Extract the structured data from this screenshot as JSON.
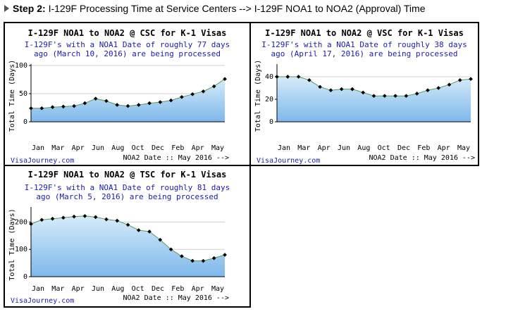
{
  "header": {
    "step_label": "Step 2:",
    "step_text": " I-129F Processing Time at Service Centers --> I-129F NOA1 to NOA2 (Approval) Time"
  },
  "colors": {
    "fill_top": "#d6ebfa",
    "fill_bottom": "#7db8ea",
    "line": "#000000",
    "subtitle": "#1a1ab3"
  },
  "chart_data": [
    {
      "type": "area",
      "title": "I-129F NOA1 to NOA2 @ CSC for K-1 Visas",
      "subtitle_lines": [
        "I-129F's with a NOA1 Date of roughly 77 days",
        "ago (March 10, 2016) are being processed"
      ],
      "ylabel": "Total Time (Days)",
      "xlabel": "NOA2 Date :: May 2016 -->",
      "source": "VisaJourney.com",
      "x_tick_labels": [
        "Jan",
        "Mar",
        "Apr",
        "Jun",
        "Aug",
        "Oct",
        "Dec",
        "Feb",
        "Apr",
        "May"
      ],
      "y_ticks": [
        0,
        50,
        100
      ],
      "ylim": [
        0,
        100
      ],
      "values": [
        24,
        24,
        26,
        27,
        28,
        33,
        41,
        37,
        30,
        28,
        30,
        33,
        35,
        38,
        44,
        49,
        54,
        63,
        76
      ]
    },
    {
      "type": "area",
      "title": "I-129F NOA1 to NOA2 @ VSC for K-1 Visas",
      "subtitle_lines": [
        "I-129F's with a NOA1 Date of roughly 38 days",
        "ago (April 17, 2016) are being processed"
      ],
      "ylabel": "Total Time (Days)",
      "xlabel": "NOA2 Date :: May 2016 -->",
      "source": "VisaJourney.com",
      "x_tick_labels": [
        "Jan",
        "Mar",
        "Apr",
        "Jun",
        "Aug",
        "Oct",
        "Dec",
        "Feb",
        "Apr",
        "May"
      ],
      "y_ticks": [
        0,
        20,
        40
      ],
      "ylim": [
        0,
        50
      ],
      "values": [
        40,
        40,
        40,
        37,
        31,
        28,
        29,
        29,
        26,
        23,
        23,
        23,
        23,
        25,
        28,
        30,
        33,
        37,
        38
      ]
    },
    {
      "type": "area",
      "title": "I-129F NOA1 to NOA2 @ TSC for K-1 Visas",
      "subtitle_lines": [
        "I-129F's with a NOA1 Date of roughly 81 days",
        "ago (March 5, 2016) are being processed"
      ],
      "ylabel": "Total Time (Days)",
      "xlabel": "NOA2 Date :: May 2016 -->",
      "source": "VisaJourney.com",
      "x_tick_labels": [
        "Jan",
        "Mar",
        "Apr",
        "Jun",
        "Aug",
        "Oct",
        "Dec",
        "Feb",
        "Apr",
        "May"
      ],
      "y_ticks": [
        0,
        100,
        200
      ],
      "ylim": [
        0,
        250
      ],
      "values": [
        193,
        208,
        212,
        216,
        220,
        222,
        218,
        210,
        205,
        190,
        170,
        165,
        135,
        100,
        75,
        58,
        58,
        68,
        80
      ]
    }
  ]
}
